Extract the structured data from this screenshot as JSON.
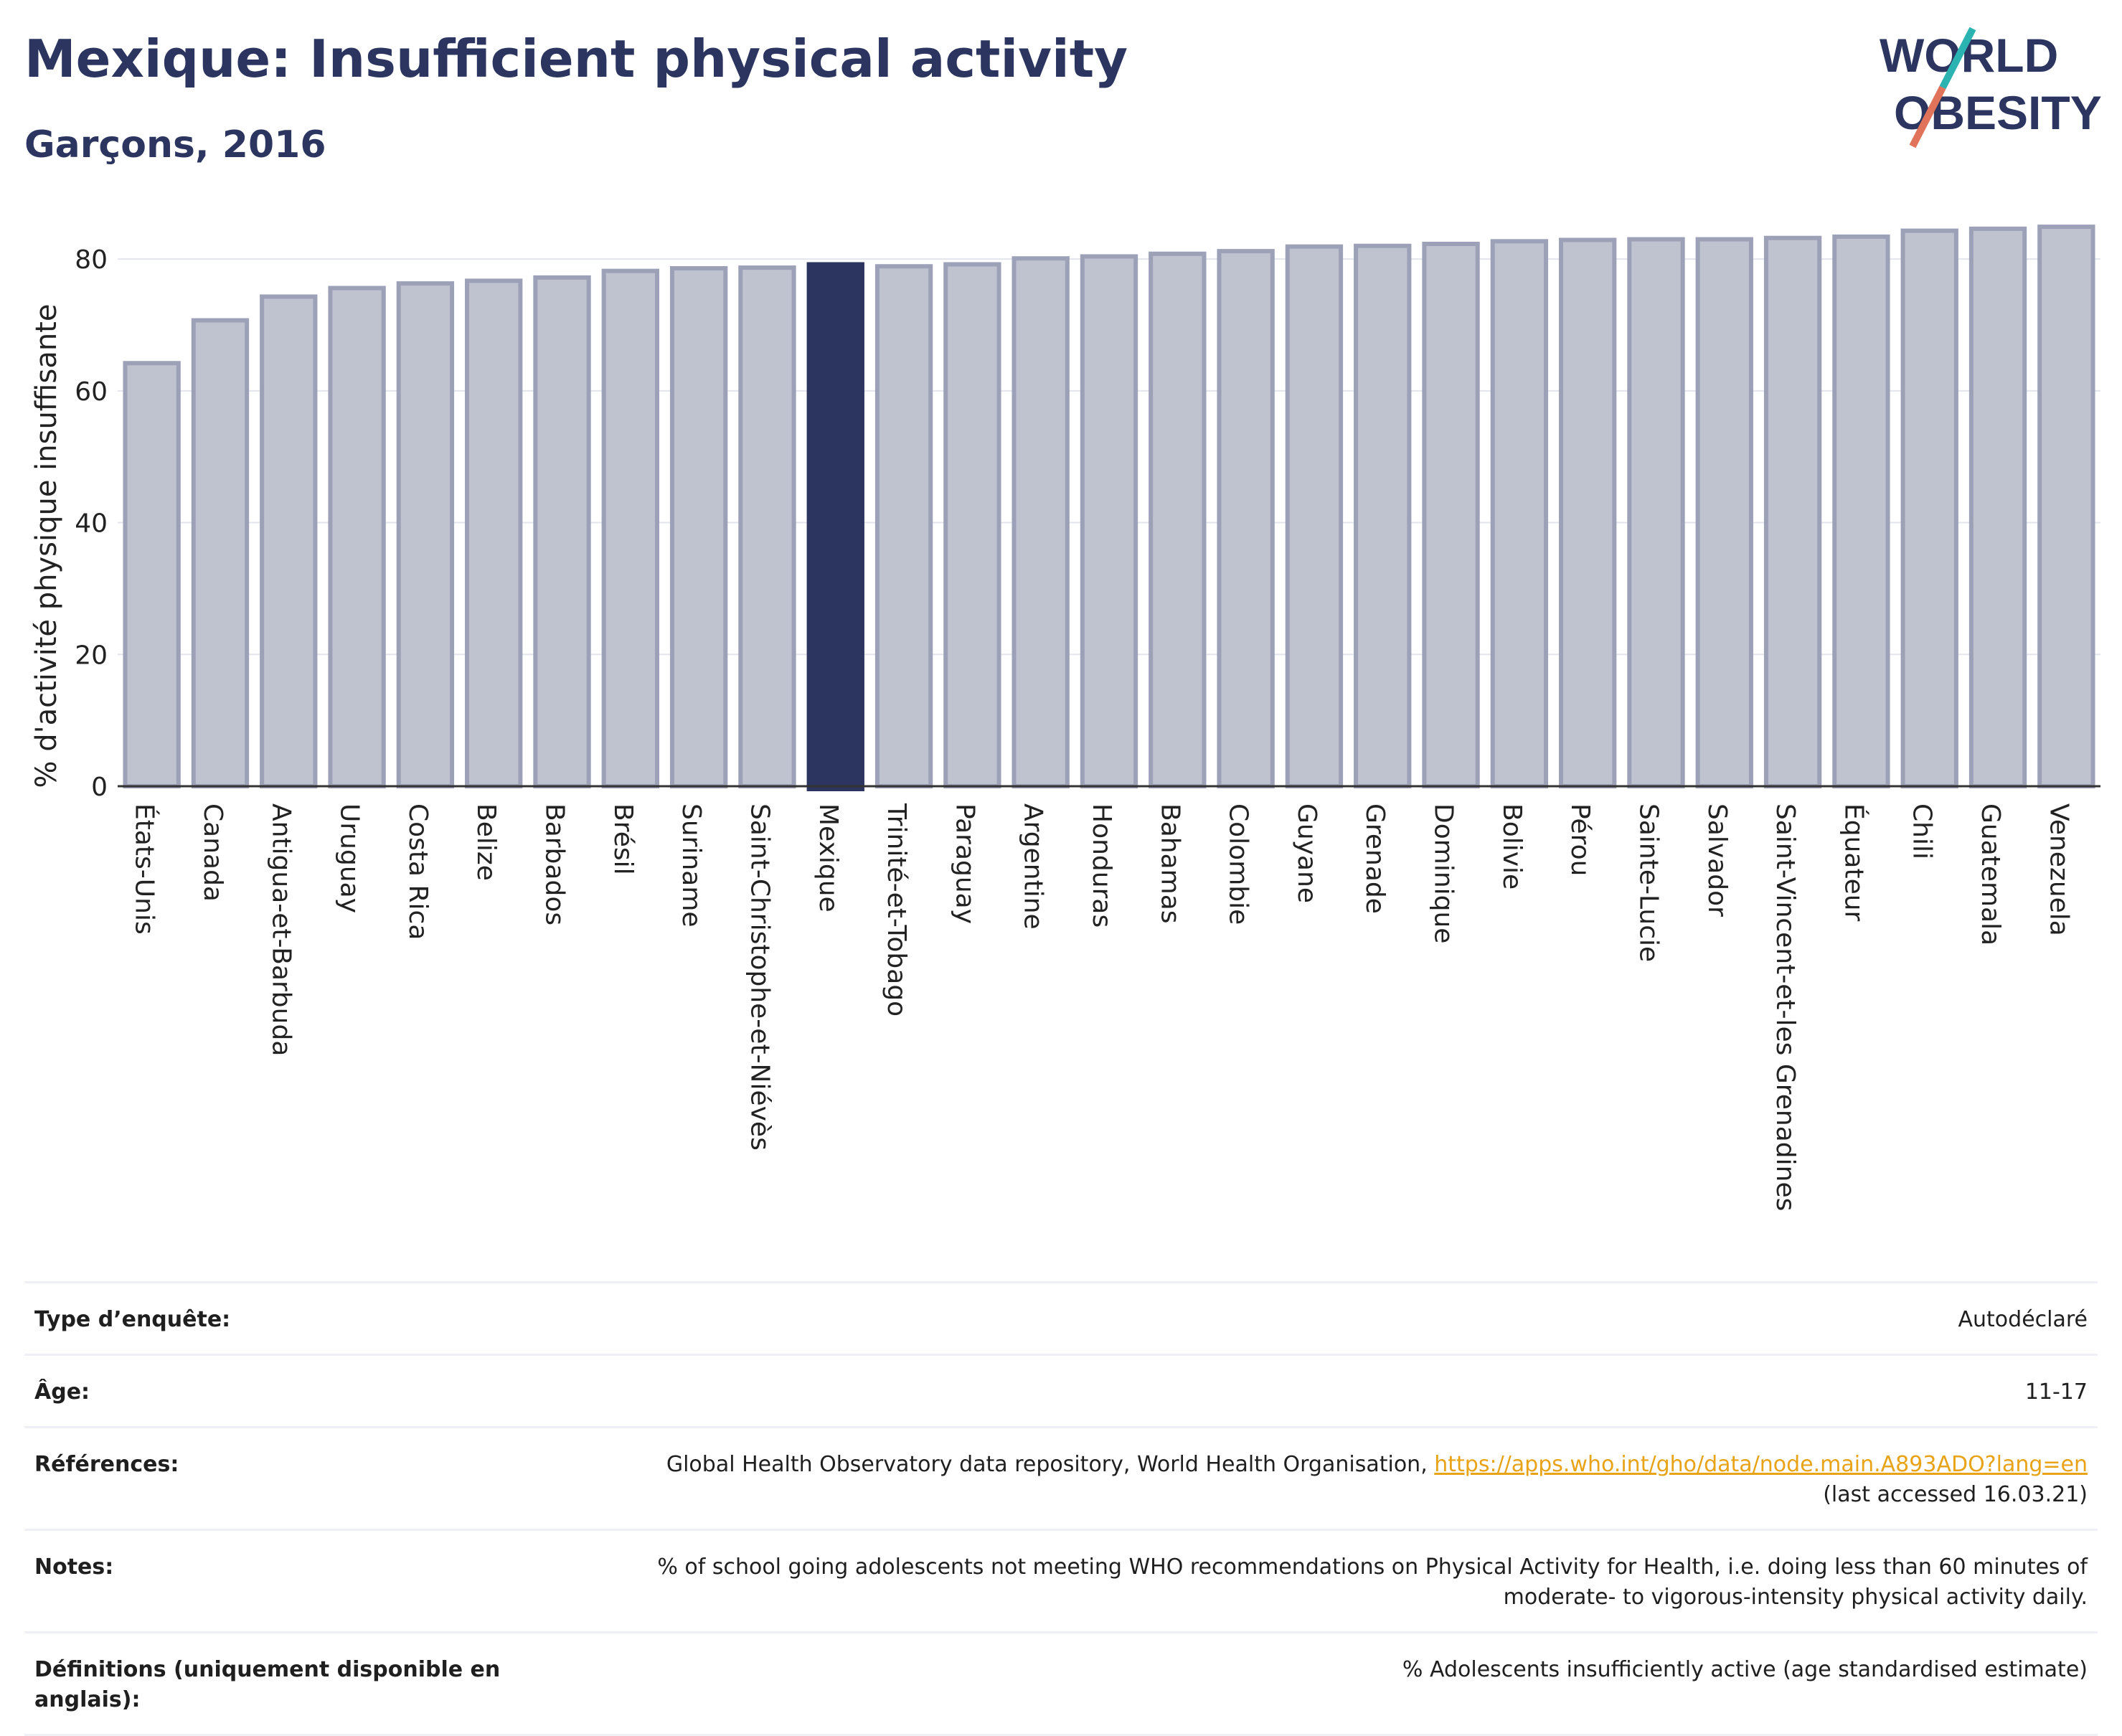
{
  "header": {
    "title": "Mexique: Insufficient physical activity",
    "subtitle": "Garçons, 2016"
  },
  "logo": {
    "line1": "WORLD",
    "line2": "OBESITY",
    "colors": {
      "text": "#2b3560",
      "slash_top": "#2ab3b1",
      "slash_bottom": "#e0735a"
    }
  },
  "chart_data": {
    "type": "bar",
    "ylabel": "% d'activité physique insuffisante",
    "xlabel": "",
    "ylim": [
      0,
      86
    ],
    "yticks": [
      0,
      20,
      40,
      60,
      80
    ],
    "grid": true,
    "highlight": "Mexique",
    "colors": {
      "bar": "#bfc2cf",
      "bar_edge": "#9ca1b8",
      "highlight": "#2b3560"
    },
    "categories": [
      "États-Unis",
      "Canada",
      "Antigua-et-Barbuda",
      "Uruguay",
      "Costa Rica",
      "Belize",
      "Barbados",
      "Brésil",
      "Suriname",
      "Saint-Christophe-et-Niévès",
      "Mexique",
      "Trinité-et-Tobago",
      "Paraguay",
      "Argentine",
      "Honduras",
      "Bahamas",
      "Colombie",
      "Guyane",
      "Grenade",
      "Dominique",
      "Bolivie",
      "Pérou",
      "Sainte-Lucie",
      "Salvador",
      "Saint-Vincent-et-les Grenadines",
      "Équateur",
      "Chili",
      "Guatemala",
      "Venezuela"
    ],
    "values": [
      64.2,
      70.7,
      74.3,
      75.6,
      76.3,
      76.7,
      77.2,
      78.2,
      78.6,
      78.7,
      79.2,
      78.9,
      79.2,
      80.1,
      80.4,
      80.8,
      81.2,
      81.9,
      82.0,
      82.3,
      82.7,
      82.9,
      83.0,
      83.0,
      83.2,
      83.4,
      84.3,
      84.6,
      84.9
    ]
  },
  "info": {
    "survey_type": {
      "label": "Type d’enquête:",
      "value": "Autodéclaré"
    },
    "age": {
      "label": "Âge:",
      "value": "11-17"
    },
    "references": {
      "label": "Références:",
      "text": "Global Health Observatory data repository, World Health Organisation, ",
      "link": "https://apps.who.int/gho/data/node.main.A893ADO?lang=en",
      "accessed": "(last accessed 16.03.21)"
    },
    "notes": {
      "label": "Notes:",
      "line1": "% of school going adolescents not meeting WHO recommendations on Physical Activity for Health, i.e. doing less than 60 minutes of",
      "line2": "moderate- to vigorous-intensity physical activity daily."
    },
    "definitions": {
      "label": "Définitions (uniquement disponible en anglais):",
      "value": "% Adolescents insufficiently active (age standardised estimate)"
    }
  }
}
